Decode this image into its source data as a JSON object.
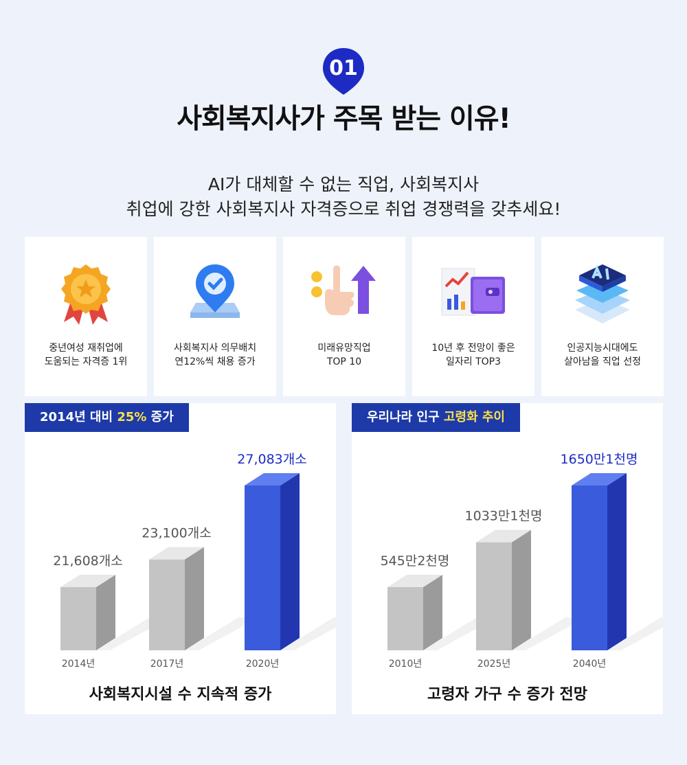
{
  "header": {
    "badge": "01",
    "title": "사회복지사가 주목 받는 이유!",
    "subtitle_line1": "AI가 대체할 수 없는 직업, 사회복지사",
    "subtitle_line2": "취업에 강한 사회복지사 자격증으로 취업 경쟁력을 갖추세요!"
  },
  "cards": [
    {
      "icon": "award-ribbon-icon",
      "line1": "중년여성 재취업에",
      "line2": "도움되는 자격증 1위"
    },
    {
      "icon": "location-pin-check-icon",
      "line1": "사회복지사 의무배치",
      "line2": "연12%씩 채용 증가"
    },
    {
      "icon": "pointing-hand-up-arrow-icon",
      "line1": "미래유망직업",
      "line2": "TOP 10"
    },
    {
      "icon": "report-chart-wallet-icon",
      "line1": "10년 후 전망이 좋은",
      "line2": "일자리 TOP3"
    },
    {
      "icon": "ai-chip-icon",
      "line1": "인공지능시대에도",
      "line2": "살아남을 직업 선정"
    }
  ],
  "colors": {
    "accent": "#1d3aa8",
    "highlight": "#ffe14a",
    "bar_gray": "#c4c4c4",
    "bar_blue": "#3a5bdb"
  },
  "chart_data": [
    {
      "type": "bar",
      "tag_pre": "2014년 대비 ",
      "tag_hl": "25%",
      "tag_post": " 증가",
      "title": "사회복지시설 수 지속적 증가",
      "categories": [
        "2014년",
        "2017년",
        "2020년"
      ],
      "values": [
        21608,
        23100,
        27083
      ],
      "value_labels": [
        "21,608개소",
        "23,100개소",
        "27,083개소"
      ],
      "highlight_index": 2
    },
    {
      "type": "bar",
      "tag_pre": "우리나라 인구 ",
      "tag_hl": "고령화 추이",
      "tag_post": "",
      "title": "고령자 가구 수 증가 전망",
      "categories": [
        "2010년",
        "2025년",
        "2040년"
      ],
      "values": [
        5452,
        10331,
        16501
      ],
      "value_labels": [
        "545만2천명",
        "1033만1천명",
        "1650만1천명"
      ],
      "highlight_index": 2
    }
  ]
}
